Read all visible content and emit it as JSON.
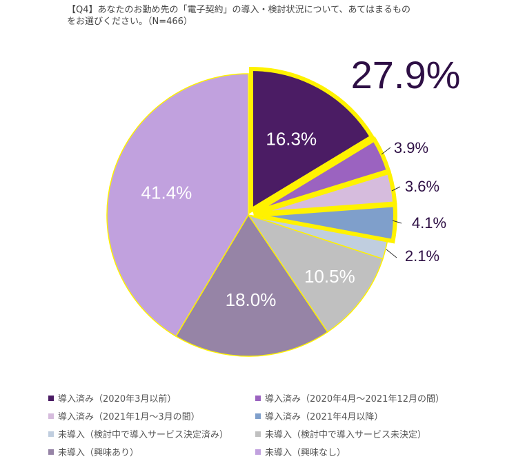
{
  "question": {
    "line1": "【Q4】あなたのお勤め先の「電子契約」の導入・検討状況について、あてはまるもの",
    "line2": "をお選びください。（N=466）"
  },
  "highlight_total": "27.9%",
  "chart_data": {
    "type": "pie",
    "start": "12 o'clock, clockwise",
    "highlight_color": "#FFF200",
    "slices": [
      {
        "label": "導入済み（2020年3月以前）",
        "value": 16.3,
        "display": "16.3%",
        "color": "#4B1C64",
        "label_color": "#ffffff",
        "highlighted": true
      },
      {
        "label": "導入済み（2020年4月～2021年12月の間）",
        "value": 3.9,
        "display": "3.9%",
        "color": "#9B63C0",
        "label_color": "#2E0F45",
        "highlighted": true
      },
      {
        "label": "導入済み（2021年1月～3月の間）",
        "value": 3.6,
        "display": "3.6%",
        "color": "#D6BCDD",
        "label_color": "#2E0F45",
        "highlighted": true
      },
      {
        "label": "導入済み（2021年4月以降）",
        "value": 4.1,
        "display": "4.1%",
        "color": "#7F9FCB",
        "label_color": "#2E0F45",
        "highlighted": true
      },
      {
        "label": "未導入（検討中で導入サービス決定済み）",
        "value": 2.1,
        "display": "2.1%",
        "color": "#C0CEDF",
        "label_color": "#2E0F45",
        "highlighted": false
      },
      {
        "label": "未導入（検討中で導入サービス未決定）",
        "value": 10.5,
        "display": "10.5%",
        "color": "#C0C0C0",
        "label_color": "#ffffff",
        "highlighted": false
      },
      {
        "label": "未導入（興味あり）",
        "value": 18.0,
        "display": "18.0%",
        "color": "#9684A6",
        "label_color": "#ffffff",
        "highlighted": false
      },
      {
        "label": "未導入（興味なし）",
        "value": 41.4,
        "display": "41.4%",
        "color": "#C1A1DE",
        "label_color": "#ffffff",
        "highlighted": false
      }
    ]
  }
}
